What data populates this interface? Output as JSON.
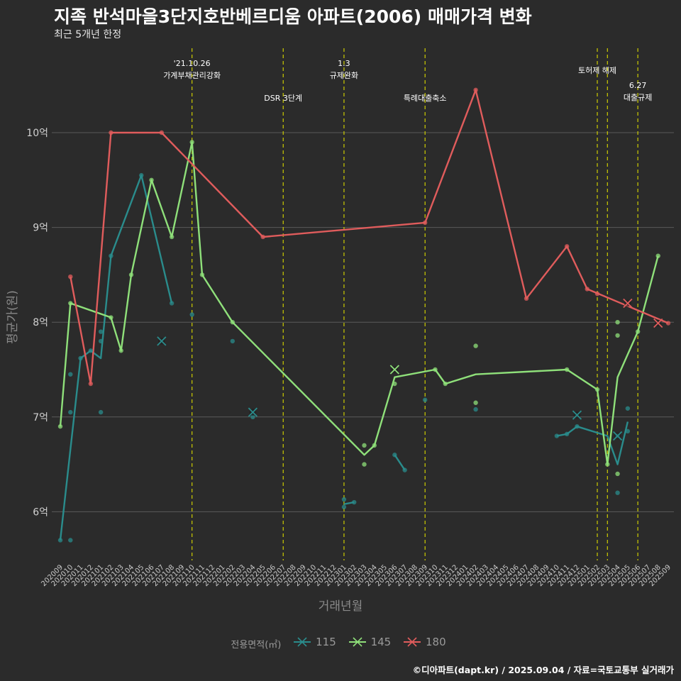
{
  "title": "지족 반석마을3단지호반베르디움 아파트(2006) 매매가격 변화",
  "subtitle": "최근 5개년 한정",
  "caption": "©디아파트(dapt.kr) / 2025.09.04 / 자료=국토교통부 실거래가",
  "colors": {
    "background": "#2b2b2b",
    "grid": "#5a5a5a",
    "event_line": "#cccc00",
    "s115": "#2a8c8c",
    "s145": "#8fe07a",
    "s180": "#e05c5c"
  },
  "chart_data": {
    "type": "line",
    "xlabel": "거래년월",
    "ylabel": "평균가(원)",
    "legend_title": "전용면적(㎡)",
    "legend_position": "bottom",
    "grid": true,
    "ylim": [
      5.5,
      10.5
    ],
    "yticks": [
      {
        "v": 6,
        "label": "6억"
      },
      {
        "v": 7,
        "label": "7억"
      },
      {
        "v": 8,
        "label": "8억"
      },
      {
        "v": 9,
        "label": "9억"
      },
      {
        "v": 10,
        "label": "10억"
      }
    ],
    "categories": [
      "202009",
      "202010",
      "202011",
      "202012",
      "202101",
      "202102",
      "202103",
      "202104",
      "202105",
      "202106",
      "202107",
      "202108",
      "202109",
      "202110",
      "202111",
      "202112",
      "202201",
      "202202",
      "202203",
      "202204",
      "202205",
      "202206",
      "202207",
      "202208",
      "202209",
      "202210",
      "202211",
      "202212",
      "202301",
      "202302",
      "202303",
      "202304",
      "202305",
      "202306",
      "202307",
      "202308",
      "202309",
      "202310",
      "202311",
      "202312",
      "202401",
      "202402",
      "202403",
      "202404",
      "202405",
      "202406",
      "202407",
      "202408",
      "202409",
      "202410",
      "202411",
      "202412",
      "202501",
      "202502",
      "202503",
      "202504",
      "202505",
      "202506",
      "202507",
      "202508",
      "202509"
    ],
    "events": [
      {
        "x": "202110",
        "label": [
          "'21.10.26",
          "가계부채관리강화"
        ],
        "level": 0
      },
      {
        "x": "202207",
        "label": [
          "DSR 3단계"
        ],
        "level": 1
      },
      {
        "x": "202301",
        "label": [
          "1.3",
          "규제완화"
        ],
        "level": 0
      },
      {
        "x": "202309",
        "label": [
          "특례대출축소"
        ],
        "level": 1
      },
      {
        "x": "202502",
        "label": [
          "토허제 해제"
        ],
        "level": 0
      },
      {
        "x": "202503",
        "label": [],
        "level": 0
      },
      {
        "x": "202506",
        "label": [
          "6.27",
          "대출규제"
        ],
        "level": 1
      }
    ],
    "series": [
      {
        "name": "115",
        "line_segments": [
          [
            [
              "202009",
              5.7
            ],
            [
              "202011",
              7.62
            ],
            [
              "202012",
              7.7
            ],
            [
              "202101",
              7.62
            ],
            [
              "202102",
              8.7
            ],
            [
              "202105",
              9.55
            ],
            [
              "202108",
              8.2
            ]
          ],
          [
            [
              "202301",
              6.08
            ],
            [
              "202302",
              6.1
            ]
          ],
          [
            [
              "202306",
              6.6
            ],
            [
              "202307",
              6.44
            ]
          ],
          [
            [
              "202410",
              6.8
            ],
            [
              "202411",
              6.82
            ],
            [
              "202412",
              6.9
            ],
            [
              "202503",
              6.8
            ],
            [
              "202504",
              6.5
            ],
            [
              "202505",
              6.95
            ]
          ]
        ],
        "points": [
          [
            "202009",
            5.7
          ],
          [
            "202010",
            5.7
          ],
          [
            "202010",
            7.05
          ],
          [
            "202010",
            7.45
          ],
          [
            "202011",
            7.62
          ],
          [
            "202012",
            7.7
          ],
          [
            "202101",
            7.9
          ],
          [
            "202101",
            7.8
          ],
          [
            "202101",
            7.05
          ],
          [
            "202102",
            8.7
          ],
          [
            "202105",
            9.55
          ],
          [
            "202108",
            8.2
          ],
          [
            "202110",
            8.08
          ],
          [
            "202202",
            7.8
          ],
          [
            "202204",
            7.0
          ],
          [
            "202301",
            6.13
          ],
          [
            "202301",
            6.05
          ],
          [
            "202302",
            6.1
          ],
          [
            "202306",
            6.6
          ],
          [
            "202307",
            6.44
          ],
          [
            "202309",
            7.18
          ],
          [
            "202402",
            7.08
          ],
          [
            "202410",
            6.8
          ],
          [
            "202411",
            6.82
          ],
          [
            "202412",
            6.9
          ],
          [
            "202504",
            6.8
          ],
          [
            "202504",
            6.2
          ],
          [
            "202505",
            6.85
          ],
          [
            "202505",
            7.09
          ]
        ],
        "latest": [
          [
            "202107",
            7.8
          ],
          [
            "202204",
            7.05
          ],
          [
            "202412",
            7.02
          ],
          [
            "202504",
            6.8
          ]
        ]
      },
      {
        "name": "145",
        "line_segments": [
          [
            [
              "202009",
              6.9
            ],
            [
              "202010",
              8.2
            ],
            [
              "202102",
              8.05
            ],
            [
              "202103",
              7.7
            ],
            [
              "202104",
              8.5
            ],
            [
              "202106",
              9.5
            ],
            [
              "202108",
              8.9
            ],
            [
              "202110",
              9.9
            ],
            [
              "202111",
              8.5
            ],
            [
              "202202",
              8.0
            ],
            [
              "202303",
              6.6
            ],
            [
              "202304",
              6.7
            ],
            [
              "202306",
              7.42
            ],
            [
              "202310",
              7.5
            ],
            [
              "202311",
              7.35
            ],
            [
              "202402",
              7.45
            ],
            [
              "202411",
              7.5
            ],
            [
              "202502",
              7.29
            ],
            [
              "202503",
              6.5
            ],
            [
              "202504",
              7.42
            ],
            [
              "202506",
              7.9
            ],
            [
              "202508",
              8.7
            ]
          ]
        ],
        "points": [
          [
            "202009",
            6.9
          ],
          [
            "202010",
            8.2
          ],
          [
            "202102",
            8.05
          ],
          [
            "202103",
            7.7
          ],
          [
            "202104",
            8.5
          ],
          [
            "202106",
            9.5
          ],
          [
            "202108",
            8.9
          ],
          [
            "202110",
            9.9
          ],
          [
            "202111",
            8.5
          ],
          [
            "202202",
            8.0
          ],
          [
            "202303",
            6.7
          ],
          [
            "202303",
            6.5
          ],
          [
            "202304",
            6.7
          ],
          [
            "202306",
            7.35
          ],
          [
            "202310",
            7.5
          ],
          [
            "202311",
            7.35
          ],
          [
            "202402",
            7.75
          ],
          [
            "202402",
            7.15
          ],
          [
            "202411",
            7.5
          ],
          [
            "202502",
            7.29
          ],
          [
            "202503",
            6.5
          ],
          [
            "202504",
            8.0
          ],
          [
            "202504",
            7.86
          ],
          [
            "202504",
            6.4
          ],
          [
            "202506",
            7.9
          ],
          [
            "202508",
            8.7
          ]
        ],
        "latest": [
          [
            "202306",
            7.5
          ]
        ]
      },
      {
        "name": "180",
        "line_segments": [
          [
            [
              "202010",
              8.48
            ],
            [
              "202012",
              7.35
            ],
            [
              "202102",
              10.0
            ],
            [
              "202107",
              10.0
            ],
            [
              "202205",
              8.9
            ],
            [
              "202309",
              9.05
            ],
            [
              "202402",
              10.45
            ],
            [
              "202407",
              8.25
            ],
            [
              "202411",
              8.8
            ],
            [
              "202501",
              8.35
            ],
            [
              "202509",
              7.99
            ]
          ]
        ],
        "points": [
          [
            "202010",
            8.48
          ],
          [
            "202012",
            7.35
          ],
          [
            "202102",
            10.0
          ],
          [
            "202107",
            10.0
          ],
          [
            "202205",
            8.9
          ],
          [
            "202309",
            9.05
          ],
          [
            "202402",
            10.45
          ],
          [
            "202407",
            8.25
          ],
          [
            "202411",
            8.8
          ],
          [
            "202501",
            8.35
          ],
          [
            "202502",
            8.3
          ],
          [
            "202509",
            7.99
          ]
        ],
        "latest": [
          [
            "202505",
            8.2
          ],
          [
            "202508",
            7.99
          ]
        ]
      }
    ]
  }
}
